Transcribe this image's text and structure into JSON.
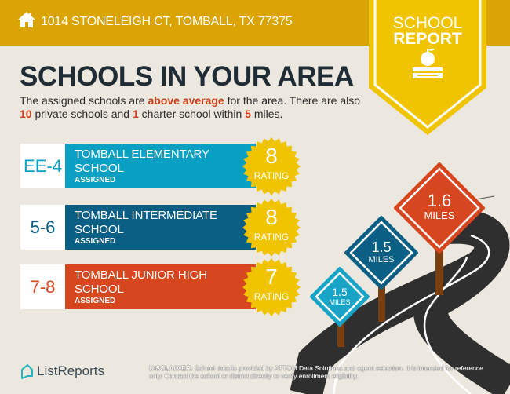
{
  "header": {
    "address": "1014 STONELEIGH CT, TOMBALL, TX 77375",
    "icon": "home-icon"
  },
  "badge": {
    "line1": "SCHOOL",
    "line2": "REPORT",
    "icon": "apple-books-icon"
  },
  "title": "SCHOOLS IN YOUR AREA",
  "summary": {
    "p1": "The assigned schools are ",
    "h1": "above average",
    "p2": " for the area. There are also ",
    "h2": "10",
    "p3": " private schools and ",
    "h3": "1",
    "p4": " charter school within ",
    "h4": "5",
    "p5": " miles."
  },
  "schools": [
    {
      "grade": "EE-4",
      "name": "TOMBALL ELEMENTARY SCHOOL",
      "status": "ASSIGNED",
      "rating": "8",
      "rating_label": "RATING",
      "color": "#0aa0c4"
    },
    {
      "grade": "5-6",
      "name": "TOMBALL INTERMEDIATE SCHOOL",
      "status": "ASSIGNED",
      "rating": "8",
      "rating_label": "RATING",
      "color": "#0b5e84"
    },
    {
      "grade": "7-8",
      "name": "TOMBALL JUNIOR HIGH SCHOOL",
      "status": "ASSIGNED",
      "rating": "7",
      "rating_label": "RATING",
      "color": "#d6461f"
    }
  ],
  "signs": [
    {
      "distance": "1.5",
      "unit": "MILES",
      "color": "#17a4c7"
    },
    {
      "distance": "1.5",
      "unit": "MILES",
      "color": "#0b5e84"
    },
    {
      "distance": "1.6",
      "unit": "MILES",
      "color": "#d6461f"
    }
  ],
  "footer": {
    "logo": "ListReports",
    "disclaimer_label": "DISCLAIMER:",
    "disclaimer": " School data is provided by ATTOM Data Solutions and agent selection. It is intended for reference only. Contact the school or district directly to verify enrollment eligibility."
  },
  "colors": {
    "banner": "#d9a404",
    "badge": "#f0c400",
    "seal": "#f0c400",
    "title": "#1f2b35",
    "highlight": "#d3401c"
  }
}
